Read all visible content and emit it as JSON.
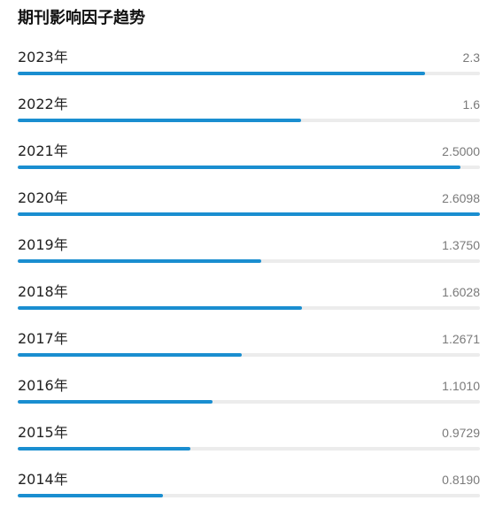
{
  "header": {
    "title": "期刊影响因子趋势"
  },
  "colors": {
    "bar_fill": "#1a8ed0",
    "bar_track": "#ececec"
  },
  "trend": {
    "rows": [
      {
        "year": "2023年",
        "value": "2.3"
      },
      {
        "year": "2022年",
        "value": "1.6"
      },
      {
        "year": "2021年",
        "value": "2.5000"
      },
      {
        "year": "2020年",
        "value": "2.6098"
      },
      {
        "year": "2019年",
        "value": "1.3750"
      },
      {
        "year": "2018年",
        "value": "1.6028"
      },
      {
        "year": "2017年",
        "value": "1.2671"
      },
      {
        "year": "2016年",
        "value": "1.1010"
      },
      {
        "year": "2015年",
        "value": "0.9729"
      },
      {
        "year": "2014年",
        "value": "0.8190"
      }
    ],
    "max_value": 2.6098
  }
}
